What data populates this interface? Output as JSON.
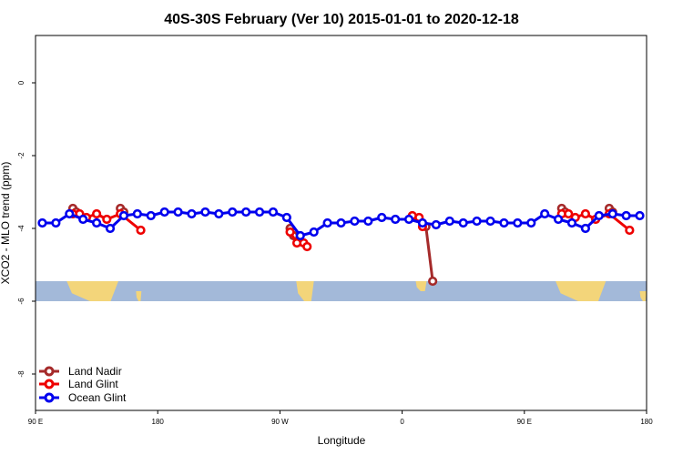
{
  "chart_data": {
    "type": "line",
    "title": "40S-30S February (Ver 10)   2015-01-01 to 2020-12-18",
    "xlabel": "Longitude",
    "ylabel": "XCO2 - MLO trend (ppm)",
    "xlim": [
      90,
      540
    ],
    "ylim": [
      -9,
      1.3
    ],
    "x_ticks": [
      {
        "value": 90,
        "label": "90 E"
      },
      {
        "value": 180,
        "label": "180"
      },
      {
        "value": 270,
        "label": "90 W"
      },
      {
        "value": 360,
        "label": "0"
      },
      {
        "value": 450,
        "label": "90 E"
      },
      {
        "value": 540,
        "label": "180"
      }
    ],
    "y_ticks": [
      {
        "value": 0,
        "label": "0"
      },
      {
        "value": -2,
        "label": "-2"
      },
      {
        "value": -4,
        "label": "-4"
      },
      {
        "value": -6,
        "label": "-6"
      },
      {
        "value": -8,
        "label": "-8"
      }
    ],
    "map_band": {
      "y_top": -5.45,
      "y_bottom": -6.0,
      "ocean_color": "#a3b9d9",
      "land_color": "#f3d57a"
    },
    "series": [
      {
        "name": "Land Nadir",
        "color": "#a52a2a",
        "segments": [
          [
            [
              117.5,
              -3.45
            ],
            [
              120,
              -3.55
            ]
          ],
          [
            [
              152.5,
              -3.45
            ],
            [
              155,
              -3.55
            ]
          ],
          [
            [
              277.5,
              -4.0
            ],
            [
              280,
              -4.2
            ]
          ],
          [
            [
              377.5,
              -3.95
            ],
            [
              382.5,
              -5.45
            ]
          ],
          [
            [
              477.5,
              -3.45
            ],
            [
              480,
              -3.55
            ]
          ],
          [
            [
              512.5,
              -3.45
            ],
            [
              515,
              -3.55
            ]
          ]
        ]
      },
      {
        "name": "Land Glint",
        "color": "#ee0000",
        "segments": [
          [
            [
              117.5,
              -3.6
            ],
            [
              122.5,
              -3.6
            ],
            [
              127.5,
              -3.7
            ],
            [
              135,
              -3.6
            ],
            [
              142.5,
              -3.75
            ],
            [
              152.5,
              -3.6
            ],
            [
              167.5,
              -4.05
            ]
          ],
          [
            [
              277.5,
              -4.1
            ],
            [
              282.5,
              -4.4
            ],
            [
              287.5,
              -4.4
            ],
            [
              290,
              -4.5
            ]
          ],
          [
            [
              367.5,
              -3.65
            ],
            [
              372.5,
              -3.7
            ],
            [
              375,
              -3.95
            ]
          ],
          [
            [
              477.5,
              -3.6
            ],
            [
              482.5,
              -3.6
            ],
            [
              487.5,
              -3.7
            ],
            [
              495,
              -3.6
            ],
            [
              502.5,
              -3.75
            ],
            [
              512.5,
              -3.6
            ],
            [
              527.5,
              -4.05
            ]
          ]
        ]
      },
      {
        "name": "Ocean Glint",
        "color": "#0000ee",
        "segments": [
          [
            [
              95,
              -3.85
            ],
            [
              105,
              -3.85
            ],
            [
              115,
              -3.6
            ],
            [
              125,
              -3.75
            ],
            [
              135,
              -3.85
            ],
            [
              145,
              -4.0
            ],
            [
              155,
              -3.65
            ],
            [
              165,
              -3.6
            ],
            [
              175,
              -3.65
            ],
            [
              185,
              -3.55
            ],
            [
              195,
              -3.55
            ],
            [
              205,
              -3.6
            ],
            [
              215,
              -3.55
            ],
            [
              225,
              -3.6
            ],
            [
              235,
              -3.55
            ],
            [
              245,
              -3.55
            ],
            [
              255,
              -3.55
            ],
            [
              265,
              -3.55
            ],
            [
              275,
              -3.7
            ],
            [
              285,
              -4.2
            ],
            [
              295,
              -4.1
            ],
            [
              305,
              -3.85
            ],
            [
              315,
              -3.85
            ],
            [
              325,
              -3.8
            ],
            [
              335,
              -3.8
            ],
            [
              345,
              -3.7
            ],
            [
              355,
              -3.75
            ],
            [
              365,
              -3.75
            ],
            [
              375,
              -3.85
            ],
            [
              385,
              -3.9
            ],
            [
              395,
              -3.8
            ],
            [
              405,
              -3.85
            ],
            [
              415,
              -3.8
            ],
            [
              425,
              -3.8
            ],
            [
              435,
              -3.85
            ],
            [
              445,
              -3.85
            ],
            [
              455,
              -3.85
            ],
            [
              465,
              -3.6
            ],
            [
              475,
              -3.75
            ],
            [
              485,
              -3.85
            ],
            [
              495,
              -4.0
            ],
            [
              505,
              -3.65
            ],
            [
              515,
              -3.6
            ],
            [
              525,
              -3.65
            ],
            [
              535,
              -3.65
            ]
          ]
        ]
      }
    ],
    "legend": {
      "position": "bottom-left",
      "entries": [
        "Land Nadir",
        "Land Glint",
        "Ocean Glint"
      ]
    }
  }
}
